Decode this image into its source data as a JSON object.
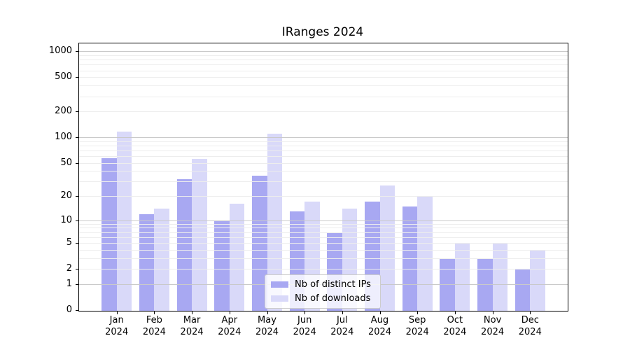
{
  "title": "IRanges 2024",
  "year_label": "2024",
  "colors": {
    "distinct_ips": "#a8a8f2",
    "downloads": "#d9d9f9",
    "grid_major": "#c9c9c9",
    "grid_minor": "#ededed",
    "axis": "#000000",
    "legend_border": "#cccccc"
  },
  "chart_data": {
    "type": "bar",
    "title": "IRanges 2024",
    "categories": [
      "Jan",
      "Feb",
      "Mar",
      "Apr",
      "May",
      "Jun",
      "Jul",
      "Aug",
      "Sep",
      "Oct",
      "Nov",
      "Dec"
    ],
    "category_year": "2024",
    "series": [
      {
        "name": "Nb of distinct IPs",
        "color": "#a8a8f2",
        "values": [
          57,
          12,
          32,
          10,
          35,
          13,
          7,
          17,
          15,
          3,
          3,
          2
        ]
      },
      {
        "name": "Nb of downloads",
        "color": "#d9d9f9",
        "values": [
          116,
          14,
          56,
          16,
          111,
          17,
          14,
          27,
          20,
          5,
          5,
          4
        ]
      }
    ],
    "xlabel": "",
    "ylabel": "",
    "yscale": "log1p",
    "yticks": [
      1000,
      500,
      200,
      100,
      50,
      20,
      10,
      5,
      2,
      1,
      0
    ],
    "ylim": [
      0,
      1240
    ],
    "grid": true,
    "legend_position": "lower center"
  }
}
